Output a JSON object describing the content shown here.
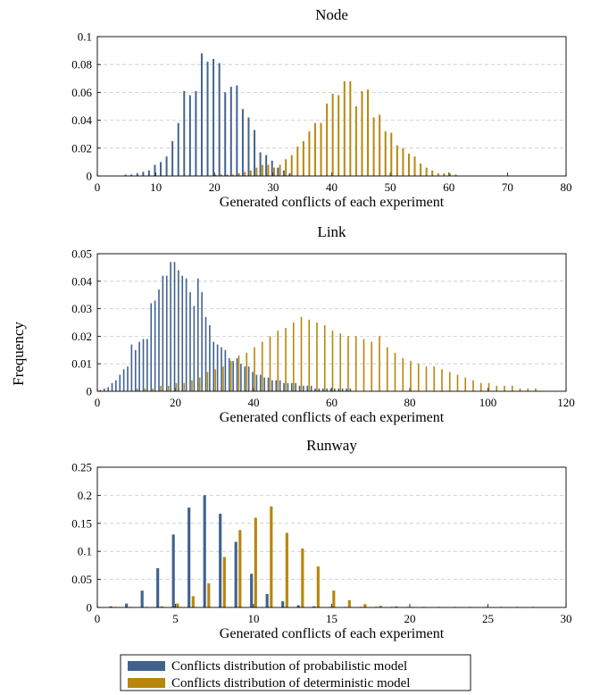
{
  "figure": {
    "ylabel": "Frequency",
    "legend": [
      {
        "name": "Conflicts distribution of probabilistic model",
        "color": "#41628f"
      },
      {
        "name": "Conflicts distribution of deterministic model",
        "color": "#b8860b"
      }
    ]
  },
  "chart_data": [
    {
      "type": "bar",
      "title": "Node",
      "xlabel": "Generated conflicts of each experiment",
      "xlim": [
        0,
        80
      ],
      "ylim": [
        0,
        0.1
      ],
      "xticks": [
        "0",
        "10",
        "20",
        "30",
        "40",
        "50",
        "60",
        "70",
        "80"
      ],
      "yticks": [
        "0",
        "0.02",
        "0.04",
        "0.06",
        "0.08",
        "0.1"
      ],
      "grid": "horizontal-dashed",
      "series": [
        {
          "color": "#41628f",
          "x": [
            5,
            6,
            7,
            8,
            9,
            10,
            11,
            12,
            13,
            14,
            15,
            16,
            17,
            18,
            19,
            20,
            21,
            22,
            23,
            24,
            25,
            26,
            27,
            28,
            29,
            30,
            31,
            32,
            33
          ],
          "values": [
            0.001,
            0.001,
            0.002,
            0.003,
            0.004,
            0.008,
            0.01,
            0.014,
            0.025,
            0.038,
            0.061,
            0.058,
            0.061,
            0.088,
            0.082,
            0.084,
            0.081,
            0.06,
            0.064,
            0.065,
            0.048,
            0.042,
            0.033,
            0.017,
            0.015,
            0.011,
            0.006,
            0.004,
            0.002
          ]
        },
        {
          "color": "#b8860b",
          "x": [
            20,
            21,
            22,
            23,
            24,
            25,
            26,
            27,
            28,
            29,
            30,
            31,
            32,
            33,
            34,
            35,
            36,
            37,
            38,
            39,
            40,
            41,
            42,
            43,
            44,
            45,
            46,
            47,
            48,
            49,
            50,
            51,
            52,
            53,
            54,
            55,
            56,
            57,
            58,
            59,
            60,
            61
          ],
          "values": [
            0.001,
            0.001,
            0.001,
            0.001,
            0.002,
            0.003,
            0.004,
            0.006,
            0.008,
            0.008,
            0.006,
            0.008,
            0.012,
            0.015,
            0.021,
            0.025,
            0.032,
            0.038,
            0.038,
            0.052,
            0.059,
            0.058,
            0.068,
            0.068,
            0.05,
            0.061,
            0.062,
            0.042,
            0.044,
            0.032,
            0.031,
            0.022,
            0.02,
            0.016,
            0.014,
            0.009,
            0.006,
            0.004,
            0.002,
            0.002,
            0.002,
            0.001
          ]
        }
      ]
    },
    {
      "type": "bar",
      "title": "Link",
      "xlabel": "Generated conflicts of each experiment",
      "xlim": [
        0,
        120
      ],
      "ylim": [
        0,
        0.05
      ],
      "xticks": [
        "0",
        "20",
        "40",
        "60",
        "80",
        "100",
        "120"
      ],
      "yticks": [
        "0",
        "0.01",
        "0.02",
        "0.03",
        "0.04",
        "0.05"
      ],
      "grid": "horizontal-dashed",
      "series": [
        {
          "color": "#41628f",
          "x": [
            1,
            2,
            3,
            4,
            5,
            6,
            7,
            8,
            9,
            10,
            11,
            12,
            13,
            14,
            15,
            16,
            17,
            18,
            19,
            20,
            21,
            22,
            23,
            24,
            25,
            26,
            27,
            28,
            29,
            30,
            31,
            32,
            33,
            34,
            35,
            36,
            37,
            38,
            39,
            40,
            41,
            42,
            43,
            44,
            45,
            46,
            47,
            48,
            49,
            50,
            51,
            52,
            53,
            54,
            55,
            56,
            57,
            58,
            59,
            60,
            61,
            62,
            63,
            64,
            65
          ],
          "values": [
            0.0005,
            0.001,
            0.0015,
            0.003,
            0.004,
            0.006,
            0.008,
            0.009,
            0.017,
            0.015,
            0.018,
            0.019,
            0.019,
            0.032,
            0.033,
            0.037,
            0.042,
            0.042,
            0.047,
            0.047,
            0.044,
            0.042,
            0.041,
            0.036,
            0.031,
            0.041,
            0.036,
            0.027,
            0.024,
            0.018,
            0.017,
            0.016,
            0.015,
            0.012,
            0.011,
            0.012,
            0.01,
            0.009,
            0.009,
            0.007,
            0.006,
            0.006,
            0.005,
            0.005,
            0.004,
            0.004,
            0.004,
            0.003,
            0.003,
            0.003,
            0.003,
            0.002,
            0.002,
            0.002,
            0.002,
            0.001,
            0.001,
            0.001,
            0.001,
            0.001,
            0.001,
            0.001,
            0.001,
            0.001,
            0.001
          ]
        },
        {
          "color": "#b8860b",
          "x": [
            10,
            12,
            14,
            16,
            18,
            20,
            22,
            24,
            26,
            28,
            30,
            32,
            34,
            36,
            38,
            40,
            42,
            44,
            46,
            48,
            50,
            52,
            54,
            56,
            58,
            60,
            62,
            64,
            66,
            68,
            70,
            72,
            74,
            76,
            78,
            80,
            82,
            84,
            86,
            88,
            90,
            92,
            94,
            96,
            98,
            100,
            102,
            104,
            106,
            108,
            110,
            112
          ],
          "values": [
            0.001,
            0.001,
            0.001,
            0.002,
            0.002,
            0.003,
            0.003,
            0.004,
            0.005,
            0.007,
            0.008,
            0.009,
            0.011,
            0.013,
            0.014,
            0.016,
            0.018,
            0.02,
            0.022,
            0.023,
            0.025,
            0.027,
            0.026,
            0.025,
            0.024,
            0.022,
            0.021,
            0.02,
            0.02,
            0.019,
            0.018,
            0.02,
            0.016,
            0.014,
            0.012,
            0.011,
            0.01,
            0.009,
            0.009,
            0.008,
            0.007,
            0.006,
            0.005,
            0.004,
            0.003,
            0.003,
            0.002,
            0.002,
            0.002,
            0.001,
            0.001,
            0.001
          ]
        }
      ]
    },
    {
      "type": "bar",
      "title": "Runway",
      "xlabel": "Generated conflicts of each experiment",
      "xlim": [
        0,
        30
      ],
      "ylim": [
        0,
        0.25
      ],
      "xticks": [
        "0",
        "5",
        "10",
        "15",
        "20",
        "25",
        "30"
      ],
      "yticks": [
        "0",
        "0.05",
        "0.1",
        "0.15",
        "0.2",
        "0.25"
      ],
      "grid": "horizontal-dashed",
      "series": [
        {
          "color": "#41628f",
          "x": [
            1,
            2,
            3,
            4,
            5,
            6,
            7,
            8,
            9,
            10,
            11,
            12,
            13,
            14,
            15,
            16,
            17,
            18,
            19,
            20,
            21,
            22,
            23,
            24,
            25,
            26,
            27,
            28
          ],
          "values": [
            0.002,
            0.007,
            0.03,
            0.07,
            0.13,
            0.178,
            0.2,
            0.167,
            0.117,
            0.06,
            0.024,
            0.011,
            0.004,
            0.002,
            0.001,
            0.001,
            0.001,
            0.001,
            0.001,
            0.001,
            0.001,
            0.001,
            0.001,
            0.001,
            0.001,
            0.001,
            0.001,
            0.001
          ]
        },
        {
          "color": "#b8860b",
          "x": [
            1,
            2,
            3,
            4,
            5,
            6,
            7,
            8,
            9,
            10,
            11,
            12,
            13,
            14,
            15,
            16,
            17,
            18,
            19,
            20
          ],
          "values": [
            0.001,
            0.001,
            0.001,
            0.002,
            0.007,
            0.02,
            0.043,
            0.09,
            0.138,
            0.16,
            0.18,
            0.133,
            0.105,
            0.073,
            0.03,
            0.013,
            0.006,
            0.003,
            0.002,
            0.001
          ]
        }
      ]
    }
  ]
}
